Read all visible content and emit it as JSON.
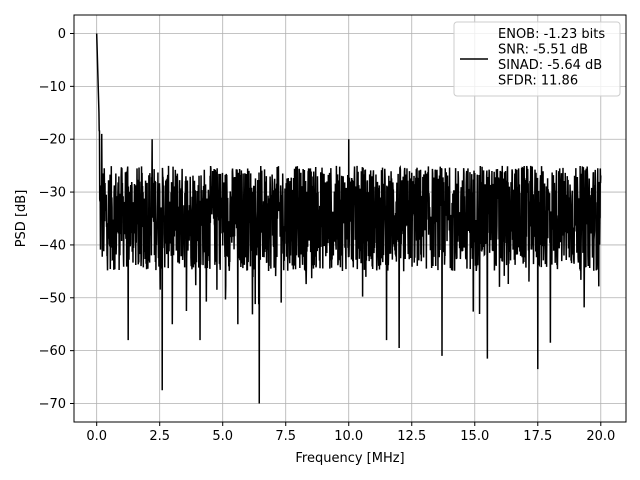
{
  "chart_data": {
    "type": "line",
    "xlabel": "Frequency [MHz]",
    "ylabel": "PSD [dB]",
    "xlim": [
      -0.9,
      21.0
    ],
    "ylim": [
      -73.5,
      3.5
    ],
    "xticks": [
      0.0,
      2.5,
      5.0,
      7.5,
      10.0,
      12.5,
      15.0,
      17.5,
      20.0
    ],
    "xtick_labels": [
      "0.0",
      "2.5",
      "5.0",
      "7.5",
      "10.0",
      "12.5",
      "15.0",
      "17.5",
      "20.0"
    ],
    "yticks": [
      0,
      -10,
      -20,
      -30,
      -40,
      -50,
      -60,
      -70
    ],
    "ytick_labels": [
      "0",
      "−10",
      "−20",
      "−30",
      "−40",
      "−50",
      "−60",
      "−70"
    ],
    "grid": true,
    "legend_position": "top-right",
    "series": [
      {
        "name": "ENOB: -1.23 bits\nSNR: -5.51 dB\nSINAD: -5.64 dB\nSFDR: 11.86",
        "color": "#000000",
        "x_range": [
          0.0,
          20.0
        ],
        "noise_floor_db": [
          -45,
          -25
        ],
        "peaks": [
          {
            "x": 0.0,
            "y": 0.0
          },
          {
            "x": 0.1,
            "y": -18.5
          },
          {
            "x": 0.2,
            "y": -19.0
          },
          {
            "x": 2.2,
            "y": -20.0
          },
          {
            "x": 10.0,
            "y": -20.0
          }
        ],
        "dips": [
          {
            "x": 1.25,
            "y": -58.0
          },
          {
            "x": 2.6,
            "y": -67.5
          },
          {
            "x": 3.0,
            "y": -55.0
          },
          {
            "x": 4.1,
            "y": -58.0
          },
          {
            "x": 5.6,
            "y": -55.0
          },
          {
            "x": 6.45,
            "y": -70.0
          },
          {
            "x": 11.5,
            "y": -58.0
          },
          {
            "x": 12.0,
            "y": -59.5
          },
          {
            "x": 13.7,
            "y": -61.0
          },
          {
            "x": 15.5,
            "y": -61.5
          },
          {
            "x": 17.5,
            "y": -63.5
          },
          {
            "x": 18.0,
            "y": -58.5
          }
        ]
      }
    ]
  }
}
